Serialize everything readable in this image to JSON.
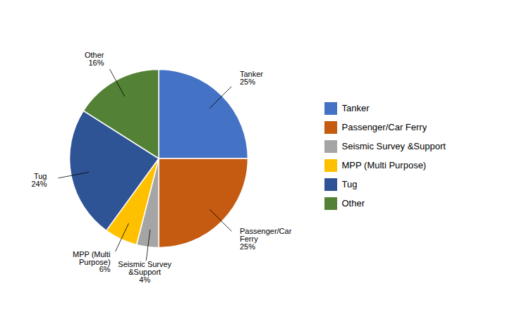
{
  "chart_data": {
    "type": "pie",
    "categories": [
      "Tanker",
      "Passenger/Car Ferry",
      "Seismic Survey &Support",
      "MPP (Multi Purpose)",
      "Tug",
      "Other"
    ],
    "values": [
      25,
      25,
      4,
      6,
      24,
      16
    ],
    "colors": [
      "#4472C4",
      "#C55A11",
      "#A5A5A5",
      "#FFC000",
      "#2F5496",
      "#538135"
    ],
    "annotations": [
      "Tanker\n25%",
      "Passenger/Car\nFerry\n25%",
      "Seismic Survey\n&Support\n4%",
      "MPP (Multi\nPurpose)\n6%",
      "Tug\n24%",
      "Other\n16%"
    ],
    "legend": "right"
  }
}
